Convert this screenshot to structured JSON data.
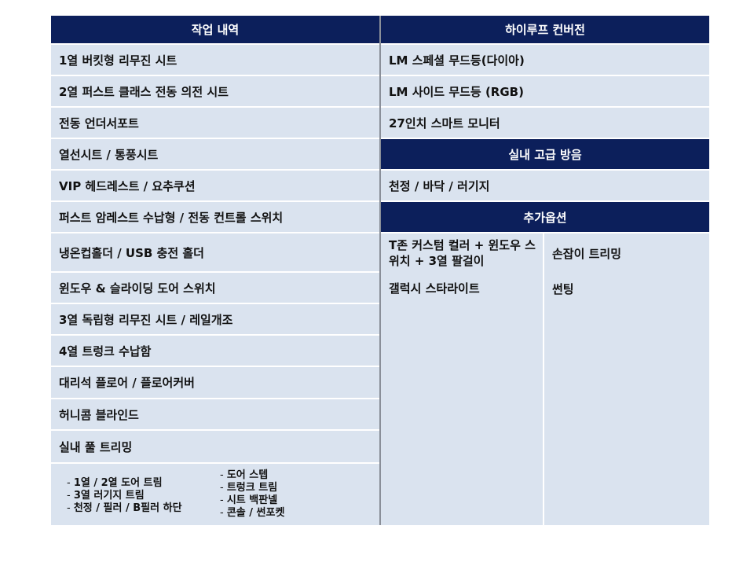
{
  "left": {
    "header": "작업 내역",
    "items": [
      "1열 버킷형 리무진 시트",
      "2열 퍼스트 클래스 전동 의전 시트",
      "전동 언더서포트",
      "열선시트 / 통풍시트",
      "VIP 헤드레스트 / 요추쿠션",
      "퍼스트 암레스트 수납형 / 전동 컨트롤 스위치",
      "냉온컵홀더 / USB 충전 홀더",
      "윈도우 & 슬라이딩 도어 스위치",
      "3열 독립형 리무진 시트 / 레일개조",
      "4열 트렁크 수납함",
      "대리석 플로어 / 플로어커버",
      "허니콤 블라인드",
      "실내 풀 트리밍"
    ],
    "sub_col1": [
      "1열 / 2열 도어 트림",
      "3열 러기지 트림",
      "천정 / 필러 / B필러 하단"
    ],
    "sub_col2": [
      "도어 스텝",
      "트렁크 트림",
      "시트 백판넬",
      "콘솔 / 썬포켓"
    ]
  },
  "right": {
    "header1": "하이루프 컨버전",
    "items1": [
      "LM 스페셜 무드등(다이아)",
      "LM 사이드 무드등 (RGB)",
      "27인치 스마트 모니터"
    ],
    "header2": "실내 고급 방음",
    "items2": [
      "천정 / 바닥 / 러기지"
    ],
    "header3": "추가옵션",
    "options": [
      [
        "T존 커스텀 컬러 + 윈도우 스위치 + 3열 팔걸이",
        "손잡이 트리밍"
      ],
      [
        "갤럭시 스타라이트",
        "썬팅"
      ]
    ]
  },
  "colors": {
    "header": "#0c1f5b",
    "cell": "#dae3ef"
  }
}
